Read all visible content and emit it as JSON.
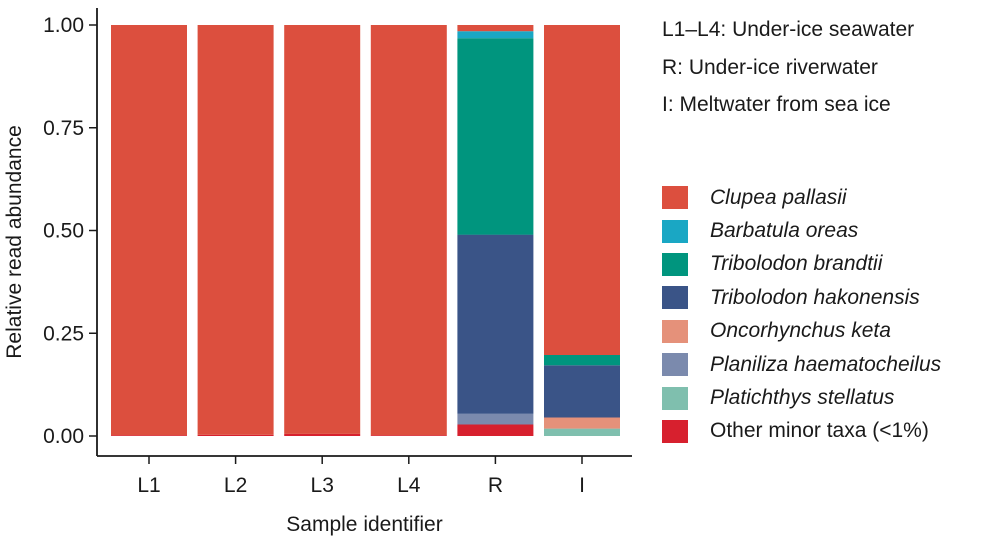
{
  "chart_data": {
    "type": "bar",
    "stacked": true,
    "xlabel": "Sample identifier",
    "ylabel": "Relative read abundance",
    "ylim": [
      0,
      1
    ],
    "yticks": [
      "0.00",
      "0.25",
      "0.50",
      "0.75",
      "1.00"
    ],
    "categories": [
      "L1",
      "L2",
      "L3",
      "L4",
      "R",
      "I"
    ],
    "notes": [
      "L1–L4: Under-ice seawater",
      "R: Under-ice riverwater",
      "I: Meltwater from sea ice"
    ],
    "legend_position": "right",
    "series": [
      {
        "name": "Other minor taxa (<1%)",
        "color": "#d7202e",
        "italic": false,
        "values": [
          0.002,
          0.003,
          0.005,
          0.002,
          0.028,
          0.0
        ]
      },
      {
        "name": "Platichthys stellatus",
        "color": "#7fbfae",
        "italic": true,
        "values": [
          0,
          0,
          0,
          0,
          0,
          0.018
        ]
      },
      {
        "name": "Planiliza haematocheilus",
        "color": "#7b8aad",
        "italic": true,
        "values": [
          0,
          0,
          0,
          0,
          0.026,
          0
        ]
      },
      {
        "name": "Oncorhynchus keta",
        "color": "#e5917a",
        "italic": true,
        "values": [
          0,
          0,
          0,
          0,
          0,
          0.027
        ]
      },
      {
        "name": "Tribolodon hakonensis",
        "color": "#3a5487",
        "italic": true,
        "values": [
          0,
          0,
          0,
          0,
          0.436,
          0.127
        ]
      },
      {
        "name": "Tribolodon brandtii",
        "color": "#00957e",
        "italic": true,
        "values": [
          0,
          0,
          0,
          0,
          0.478,
          0.025
        ]
      },
      {
        "name": "Barbatula oreas",
        "color": "#1aa7c4",
        "italic": true,
        "values": [
          0,
          0,
          0,
          0,
          0.017,
          0
        ]
      },
      {
        "name": "Clupea pallasii",
        "color": "#dc4f3e",
        "italic": true,
        "values": [
          0.998,
          0.997,
          0.995,
          0.998,
          0.015,
          0.803
        ]
      }
    ],
    "legend_order": [
      "Clupea pallasii",
      "Barbatula oreas",
      "Tribolodon brandtii",
      "Tribolodon hakonensis",
      "Oncorhynchus keta",
      "Planiliza haematocheilus",
      "Platichthys stellatus",
      "Other minor taxa (<1%)"
    ]
  }
}
